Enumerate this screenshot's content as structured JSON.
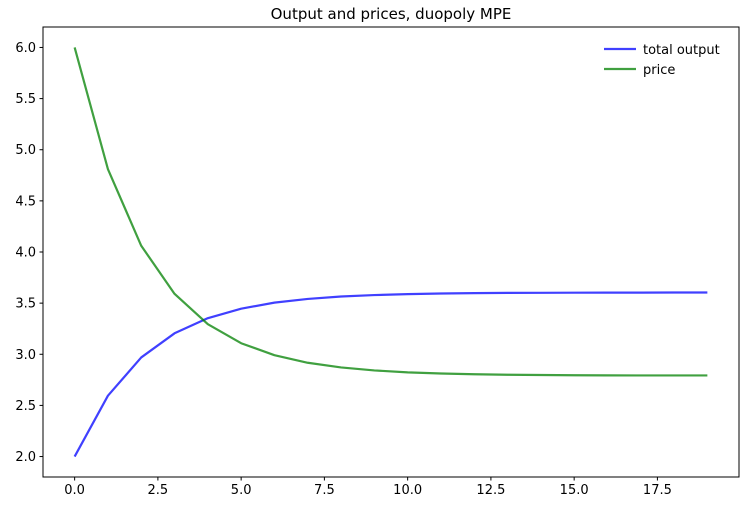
{
  "chart_data": {
    "type": "line",
    "title": "Output and prices, duopoly MPE",
    "x": [
      0,
      1,
      2,
      3,
      4,
      5,
      6,
      7,
      8,
      9,
      10,
      11,
      12,
      13,
      14,
      15,
      16,
      17,
      18,
      19
    ],
    "series": [
      {
        "name": "total output",
        "color": "#0000ff",
        "opacity": 0.75,
        "values": [
          2.0,
          2.595,
          2.969,
          3.205,
          3.353,
          3.446,
          3.505,
          3.541,
          3.565,
          3.579,
          3.588,
          3.594,
          3.598,
          3.6,
          3.601,
          3.602,
          3.603,
          3.603,
          3.604,
          3.604
        ]
      },
      {
        "name": "price",
        "color": "#008000",
        "opacity": 0.75,
        "values": [
          6.0,
          4.81,
          4.061,
          3.591,
          3.294,
          3.108,
          2.991,
          2.917,
          2.871,
          2.842,
          2.823,
          2.812,
          2.805,
          2.8,
          2.797,
          2.795,
          2.794,
          2.793,
          2.793,
          2.793
        ]
      }
    ],
    "xlabel": "",
    "ylabel": "",
    "xlim": [
      -0.95,
      19.95
    ],
    "ylim": [
      1.8,
      6.2
    ],
    "xticks": {
      "values": [
        0,
        2.5,
        5,
        7.5,
        10,
        12.5,
        15,
        17.5
      ],
      "labels": [
        "0.0",
        "2.5",
        "5.0",
        "7.5",
        "10.0",
        "12.5",
        "15.0",
        "17.5"
      ]
    },
    "yticks": {
      "values": [
        2.0,
        2.5,
        3.0,
        3.5,
        4.0,
        4.5,
        5.0,
        5.5,
        6.0
      ],
      "labels": [
        "2.0",
        "2.5",
        "3.0",
        "3.5",
        "4.0",
        "4.5",
        "5.0",
        "5.5",
        "6.0"
      ]
    },
    "grid": false,
    "legend": {
      "position": "upper right",
      "frame": false,
      "entries": [
        "total output",
        "price"
      ]
    },
    "spine_color": "#000000",
    "background_color": "#ffffff"
  }
}
